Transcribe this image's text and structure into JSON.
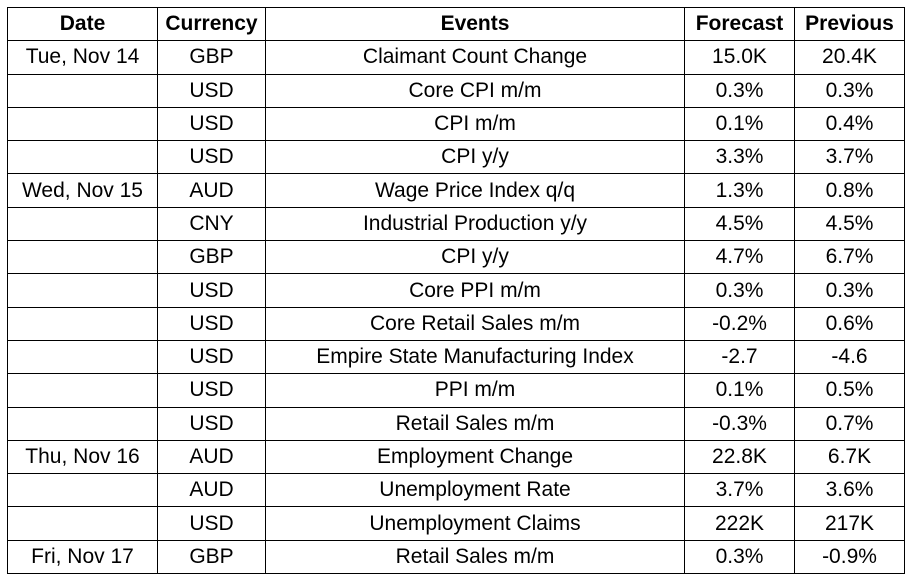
{
  "headers": [
    "Date",
    "Currency",
    "Events",
    "Forecast",
    "Previous"
  ],
  "rows": [
    {
      "date": "Tue, Nov 14",
      "currency": "GBP",
      "event": "Claimant Count Change",
      "forecast": "15.0K",
      "previous": "20.4K"
    },
    {
      "date": "",
      "currency": "USD",
      "event": "Core CPI m/m",
      "forecast": "0.3%",
      "previous": "0.3%"
    },
    {
      "date": "",
      "currency": "USD",
      "event": "CPI m/m",
      "forecast": "0.1%",
      "previous": "0.4%"
    },
    {
      "date": "",
      "currency": "USD",
      "event": "CPI y/y",
      "forecast": "3.3%",
      "previous": "3.7%"
    },
    {
      "date": "Wed, Nov 15",
      "currency": "AUD",
      "event": "Wage Price Index q/q",
      "forecast": "1.3%",
      "previous": "0.8%"
    },
    {
      "date": "",
      "currency": "CNY",
      "event": "Industrial Production y/y",
      "forecast": "4.5%",
      "previous": "4.5%"
    },
    {
      "date": "",
      "currency": "GBP",
      "event": "CPI y/y",
      "forecast": "4.7%",
      "previous": "6.7%"
    },
    {
      "date": "",
      "currency": "USD",
      "event": "Core PPI m/m",
      "forecast": "0.3%",
      "previous": "0.3%"
    },
    {
      "date": "",
      "currency": "USD",
      "event": "Core Retail Sales m/m",
      "forecast": "-0.2%",
      "previous": "0.6%"
    },
    {
      "date": "",
      "currency": "USD",
      "event": "Empire State Manufacturing Index",
      "forecast": "-2.7",
      "previous": "-4.6"
    },
    {
      "date": "",
      "currency": "USD",
      "event": "PPI m/m",
      "forecast": "0.1%",
      "previous": "0.5%"
    },
    {
      "date": "",
      "currency": "USD",
      "event": "Retail Sales m/m",
      "forecast": "-0.3%",
      "previous": "0.7%"
    },
    {
      "date": "Thu, Nov 16",
      "currency": "AUD",
      "event": "Employment Change",
      "forecast": "22.8K",
      "previous": "6.7K"
    },
    {
      "date": "",
      "currency": "AUD",
      "event": "Unemployment Rate",
      "forecast": "3.7%",
      "previous": "3.6%"
    },
    {
      "date": "",
      "currency": "USD",
      "event": "Unemployment Claims",
      "forecast": "222K",
      "previous": "217K"
    },
    {
      "date": "Fri, Nov 17",
      "currency": "GBP",
      "event": "Retail Sales m/m",
      "forecast": "0.3%",
      "previous": "-0.9%"
    }
  ]
}
